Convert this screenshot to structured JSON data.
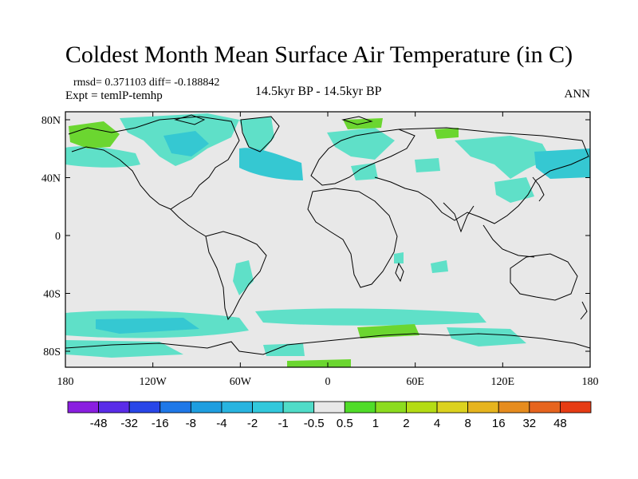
{
  "header": {
    "title": "Coldest Month Mean Surface Air Temperature (in C)",
    "stats": "rmsd= 0.371103 diff= -0.188842",
    "expt": "Expt = temlP-temhp",
    "subtitle": "14.5kyr BP - 14.5kyr BP",
    "season": "ANN"
  },
  "axes": {
    "lat_ticks": [
      "80N",
      "40N",
      "0",
      "40S",
      "80S"
    ],
    "lon_ticks": [
      "180",
      "120W",
      "60W",
      "0",
      "60E",
      "120E",
      "180"
    ]
  },
  "colors": {
    "background": "#e8e8e8",
    "cyan_light": "#5fe0c8",
    "cyan_mid": "#35c8d2",
    "green": "#6bd630"
  },
  "colorbar": {
    "labels": [
      "-48",
      "-32",
      "-16",
      "-8",
      "-4",
      "-2",
      "-1",
      "-0.5",
      "0.5",
      "1",
      "2",
      "4",
      "8",
      "16",
      "32",
      "48"
    ],
    "colors": [
      "#8a1ee0",
      "#5a2ce8",
      "#2846e8",
      "#1e78e8",
      "#1e9ee0",
      "#28b4e0",
      "#32c8dc",
      "#50dcc8",
      "#e8e8e8",
      "#50dc28",
      "#8cdc1e",
      "#b4dc14",
      "#dcd21e",
      "#e6b41e",
      "#e68c1e",
      "#e6641e",
      "#e63c14"
    ]
  }
}
